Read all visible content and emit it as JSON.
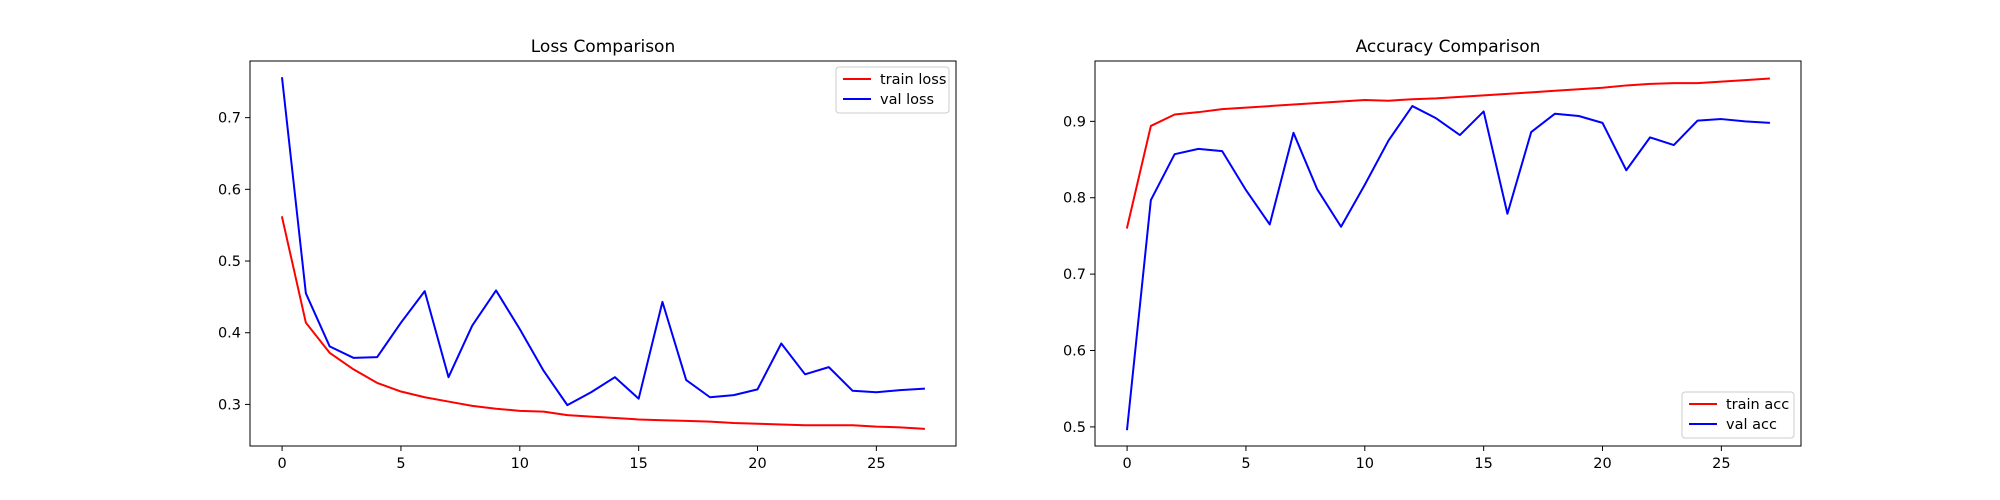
{
  "chart_data": [
    {
      "type": "line",
      "title": "Loss Comparison",
      "xlabel": "",
      "ylabel": "",
      "x": [
        0,
        1,
        2,
        3,
        4,
        5,
        6,
        7,
        8,
        9,
        10,
        11,
        12,
        13,
        14,
        15,
        16,
        17,
        18,
        19,
        20,
        21,
        22,
        23,
        24,
        25,
        26,
        27
      ],
      "series": [
        {
          "name": "train loss",
          "color": "#ff0000",
          "values": [
            0.561,
            0.414,
            0.372,
            0.349,
            0.33,
            0.318,
            0.31,
            0.304,
            0.298,
            0.294,
            0.291,
            0.29,
            0.285,
            0.283,
            0.281,
            0.279,
            0.278,
            0.277,
            0.276,
            0.274,
            0.273,
            0.272,
            0.271,
            0.271,
            0.271,
            0.269,
            0.268,
            0.266
          ]
        },
        {
          "name": "val loss",
          "color": "#0000ff",
          "values": [
            0.755,
            0.455,
            0.381,
            0.365,
            0.366,
            0.414,
            0.458,
            0.338,
            0.41,
            0.459,
            0.405,
            0.347,
            0.299,
            0.317,
            0.338,
            0.308,
            0.443,
            0.334,
            0.31,
            0.313,
            0.321,
            0.385,
            0.342,
            0.352,
            0.319,
            0.317,
            0.32,
            0.322
          ]
        }
      ],
      "xlim": [
        -1.35,
        28.35
      ],
      "ylim": [
        0.242,
        0.779
      ],
      "xticks": [
        0,
        5,
        10,
        15,
        20,
        25
      ],
      "yticks": [
        0.3,
        0.4,
        0.5,
        0.6,
        0.7
      ],
      "xtick_labels": [
        "0",
        "5",
        "10",
        "15",
        "20",
        "25"
      ],
      "ytick_labels": [
        "0.3",
        "0.4",
        "0.5",
        "0.6",
        "0.7"
      ],
      "grid": false,
      "legend": "upper right"
    },
    {
      "type": "line",
      "title": "Accuracy Comparison",
      "xlabel": "",
      "ylabel": "",
      "x": [
        0,
        1,
        2,
        3,
        4,
        5,
        6,
        7,
        8,
        9,
        10,
        11,
        12,
        13,
        14,
        15,
        16,
        17,
        18,
        19,
        20,
        21,
        22,
        23,
        24,
        25,
        26,
        27
      ],
      "series": [
        {
          "name": "train acc",
          "color": "#ff0000",
          "values": [
            0.761,
            0.894,
            0.909,
            0.912,
            0.916,
            0.918,
            0.92,
            0.922,
            0.924,
            0.926,
            0.928,
            0.927,
            0.929,
            0.93,
            0.932,
            0.934,
            0.936,
            0.938,
            0.94,
            0.942,
            0.944,
            0.947,
            0.949,
            0.95,
            0.95,
            0.952,
            0.954,
            0.956
          ]
        },
        {
          "name": "val acc",
          "color": "#0000ff",
          "values": [
            0.497,
            0.797,
            0.857,
            0.864,
            0.861,
            0.81,
            0.765,
            0.885,
            0.811,
            0.762,
            0.817,
            0.875,
            0.92,
            0.904,
            0.882,
            0.913,
            0.779,
            0.886,
            0.91,
            0.907,
            0.898,
            0.836,
            0.879,
            0.869,
            0.901,
            0.903,
            0.9,
            0.898
          ]
        }
      ],
      "xlim": [
        -1.35,
        28.35
      ],
      "ylim": [
        0.475,
        0.979
      ],
      "xticks": [
        0,
        5,
        10,
        15,
        20,
        25
      ],
      "yticks": [
        0.5,
        0.6,
        0.7,
        0.8,
        0.9
      ],
      "xtick_labels": [
        "0",
        "5",
        "10",
        "15",
        "20",
        "25"
      ],
      "ytick_labels": [
        "0.5",
        "0.6",
        "0.7",
        "0.8",
        "0.9"
      ],
      "grid": false,
      "legend": "lower right"
    }
  ]
}
